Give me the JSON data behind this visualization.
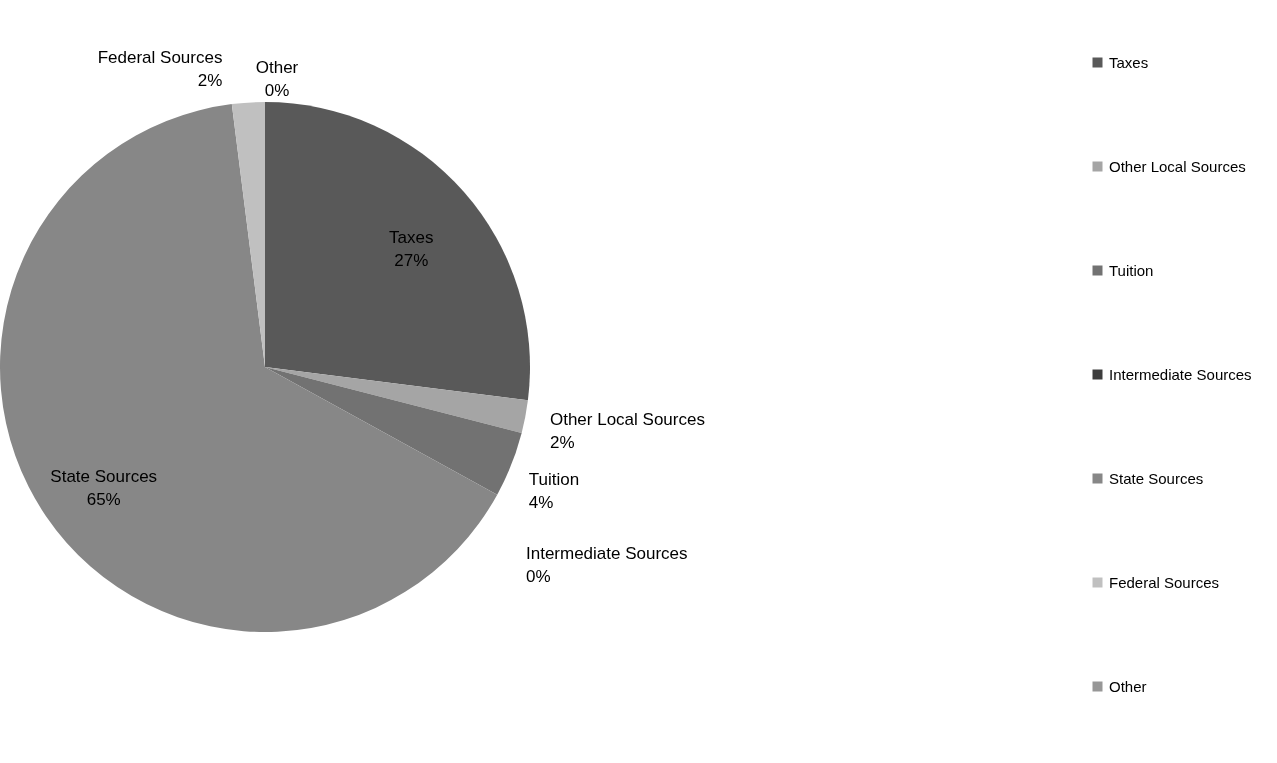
{
  "chart_data": {
    "type": "pie",
    "categories": [
      "Taxes",
      "Other Local Sources",
      "Tuition",
      "Intermediate Sources",
      "State Sources",
      "Federal Sources",
      "Other"
    ],
    "values": [
      27,
      2,
      4,
      0,
      65,
      2,
      0
    ],
    "value_labels": [
      "27%",
      "2%",
      "4%",
      "0%",
      "65%",
      "2%",
      "0%"
    ],
    "colors": [
      "#595959",
      "#a5a5a5",
      "#727272",
      "#3d3d3d",
      "#878787",
      "#c0c0c0",
      "#979797"
    ],
    "legend": "right"
  }
}
